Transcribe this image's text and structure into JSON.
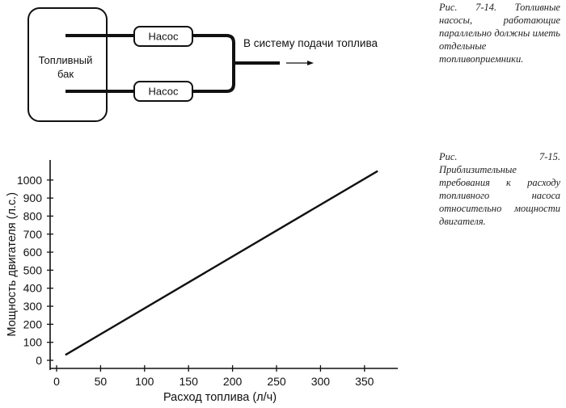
{
  "figure_7_14": {
    "tank_label_line1": "Топливный",
    "tank_label_line2": "бак",
    "pump_top_label": "Насос",
    "pump_bottom_label": "Насос",
    "outlet_label": "В систему подачи топлива",
    "caption": "Рис. 7-14. Топливные насосы, работающие параллельно должны иметь отдельные топливоприемники."
  },
  "figure_7_15": {
    "caption": "Рис. 7-15. Приблизительные требования к расходу топливного насоса относительно мощности двигателя."
  },
  "chart_data": {
    "type": "line",
    "title": "",
    "xlabel": "Расход топлива (л/ч)",
    "ylabel": "Мощность двигателя (л.с.)",
    "xlim": [
      0,
      375
    ],
    "ylim": [
      0,
      1100
    ],
    "xticks": [
      0,
      50,
      100,
      150,
      200,
      250,
      300,
      350
    ],
    "yticks": [
      0,
      100,
      200,
      300,
      400,
      500,
      600,
      700,
      800,
      900,
      1000
    ],
    "grid": false,
    "series": [
      {
        "x": [
          10,
          365
        ],
        "y": [
          30,
          1050
        ]
      }
    ]
  }
}
